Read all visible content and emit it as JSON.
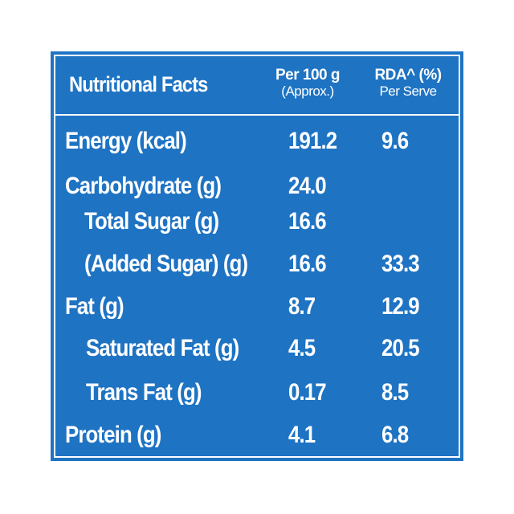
{
  "table": {
    "title": "Nutritional Facts",
    "col_per100_line1": "Per 100 g",
    "col_per100_line2": "(Approx.)",
    "col_rda_line1": "RDA^ (%)",
    "col_rda_line2": "Per Serve",
    "rows": [
      {
        "label": "Energy (kcal)",
        "per100": "191.2",
        "rda": "9.6",
        "indent": 0
      },
      {
        "label": "Carbohydrate (g)",
        "per100": "24.0",
        "rda": "",
        "indent": 0
      },
      {
        "label": "Total Sugar (g)",
        "per100": "16.6",
        "rda": "",
        "indent": 1
      },
      {
        "label": "(Added Sugar) (g)",
        "per100": "16.6",
        "rda": "33.3",
        "indent": 1
      },
      {
        "label": "Fat (g)",
        "per100": "8.7",
        "rda": "12.9",
        "indent": 0
      },
      {
        "label": "Saturated Fat (g)",
        "per100": "4.5",
        "rda": "20.5",
        "indent": 2
      },
      {
        "label": "Trans Fat (g)",
        "per100": "0.17",
        "rda": "8.5",
        "indent": 2
      },
      {
        "label": "Protein (g)",
        "per100": "4.1",
        "rda": "6.8",
        "indent": 0
      }
    ]
  },
  "colors": {
    "background": "#1e73c3",
    "text": "#ffffff"
  }
}
